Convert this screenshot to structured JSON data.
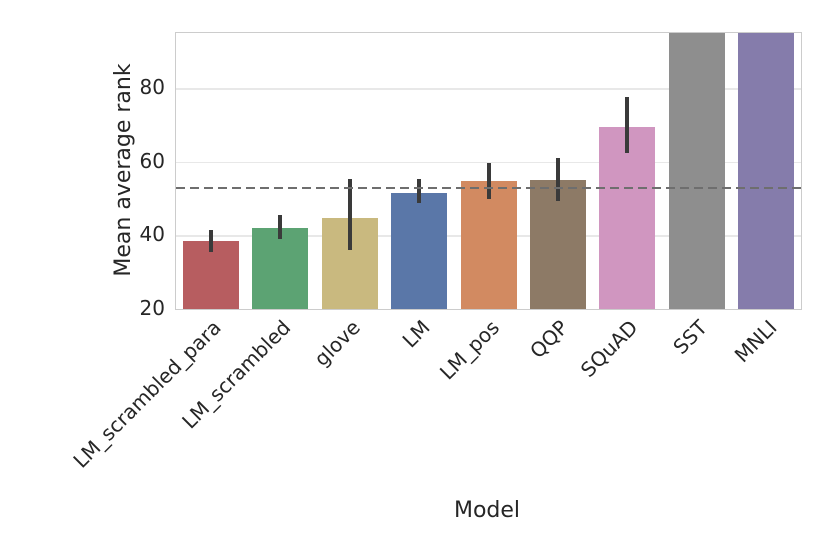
{
  "chart_data": {
    "type": "bar",
    "title": "",
    "xlabel": "Model",
    "ylabel": "Mean average rank",
    "categories": [
      "LM_scrambled_para",
      "LM_scrambled",
      "glove",
      "LM",
      "LM_pos",
      "QQP",
      "SQuAD",
      "SST",
      "MNLI"
    ],
    "values": [
      38.5,
      42.0,
      44.7,
      51.5,
      54.8,
      55.0,
      69.5,
      95.0,
      95.0
    ],
    "error_bars": {
      "low": [
        35.5,
        39.0,
        36.0,
        48.8,
        50.0,
        49.3,
        62.5,
        null,
        null
      ],
      "high": [
        41.5,
        45.5,
        55.3,
        55.3,
        59.6,
        61.0,
        77.6,
        null,
        null
      ]
    },
    "clipped_at_top": [
      false,
      false,
      false,
      false,
      false,
      false,
      false,
      true,
      true
    ],
    "bar_colors": [
      "#b75d60",
      "#5ca373",
      "#c9b97f",
      "#5a77a8",
      "#d28a61",
      "#8d7a66",
      "#d096c0",
      "#8e8e8e",
      "#857cab"
    ],
    "error_bar_color": "#3a3a3a",
    "reference_line": {
      "y": 53,
      "style": "dashed",
      "color": "#6e6e6e"
    },
    "ylim": [
      20,
      95
    ],
    "yticks": [
      20,
      40,
      60,
      80
    ],
    "grid": "horizontal",
    "grid_color": "#e8e8e8",
    "spine_color": "#cccccc",
    "legend": null
  }
}
